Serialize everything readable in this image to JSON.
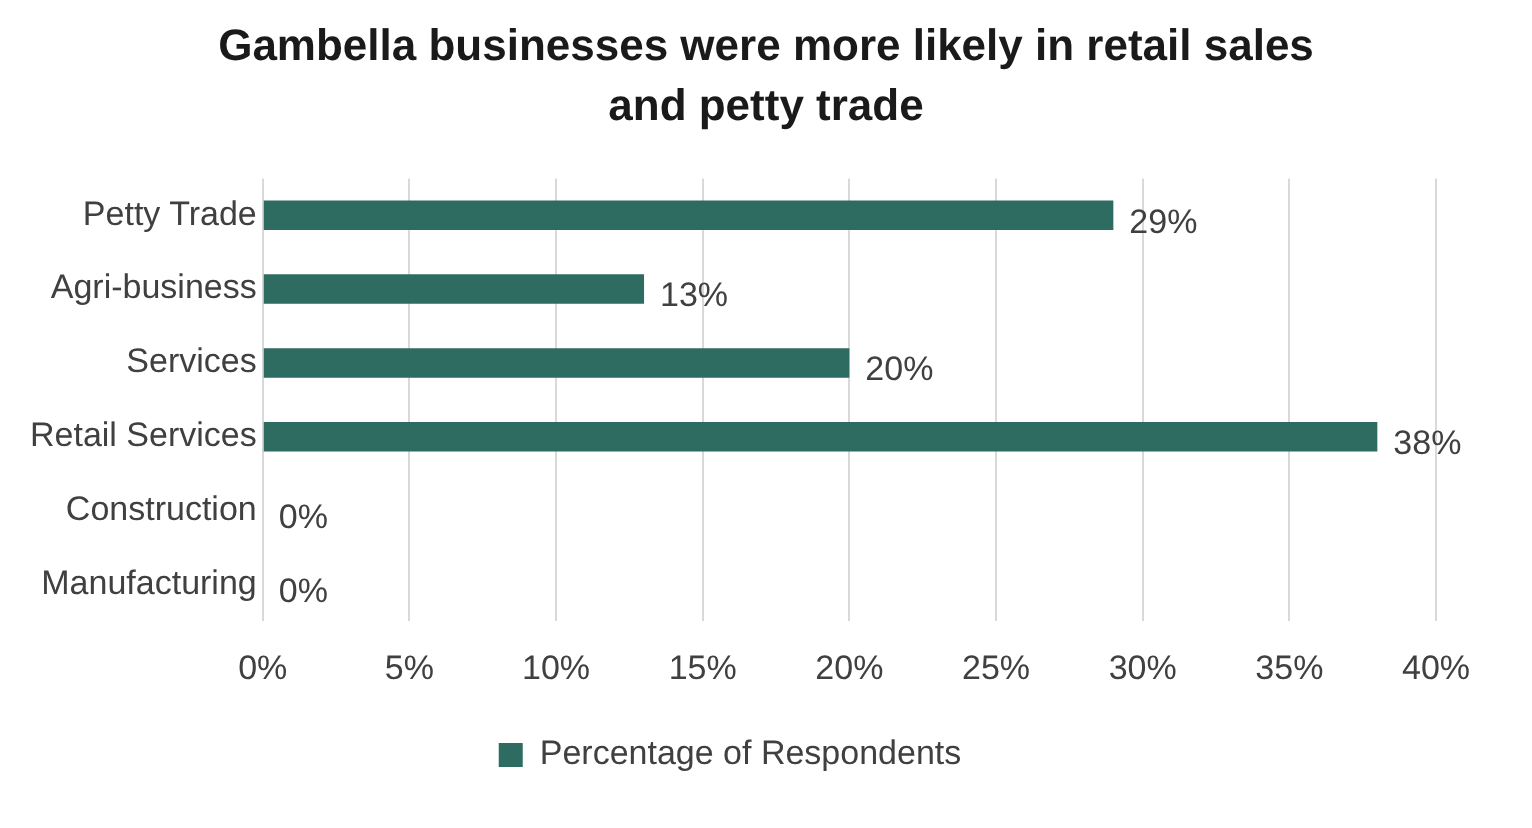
{
  "chart_data": {
    "type": "bar",
    "orientation": "horizontal",
    "title": "Gambella businesses were more likely in retail sales and petty trade",
    "categories": [
      "Petty Trade",
      "Agri-business",
      "Services",
      "Retail Services",
      "Construction",
      "Manufacturing"
    ],
    "series": [
      {
        "name": "Percentage of Respondents",
        "color": "#2e6b61",
        "values": [
          29,
          13,
          20,
          38,
          0,
          0
        ],
        "value_labels": [
          "29%",
          "13%",
          "20%",
          "38%",
          "0%",
          "0%"
        ]
      }
    ],
    "xlim": [
      0,
      40
    ],
    "xticks": [
      {
        "value": 0,
        "label": "0%"
      },
      {
        "value": 5,
        "label": "5%"
      },
      {
        "value": 10,
        "label": "10%"
      },
      {
        "value": 15,
        "label": "15%"
      },
      {
        "value": 20,
        "label": "20%"
      },
      {
        "value": 25,
        "label": "25%"
      },
      {
        "value": 30,
        "label": "30%"
      },
      {
        "value": 35,
        "label": "35%"
      },
      {
        "value": 40,
        "label": "40%"
      }
    ],
    "grid": "x",
    "legend": "bottom"
  }
}
